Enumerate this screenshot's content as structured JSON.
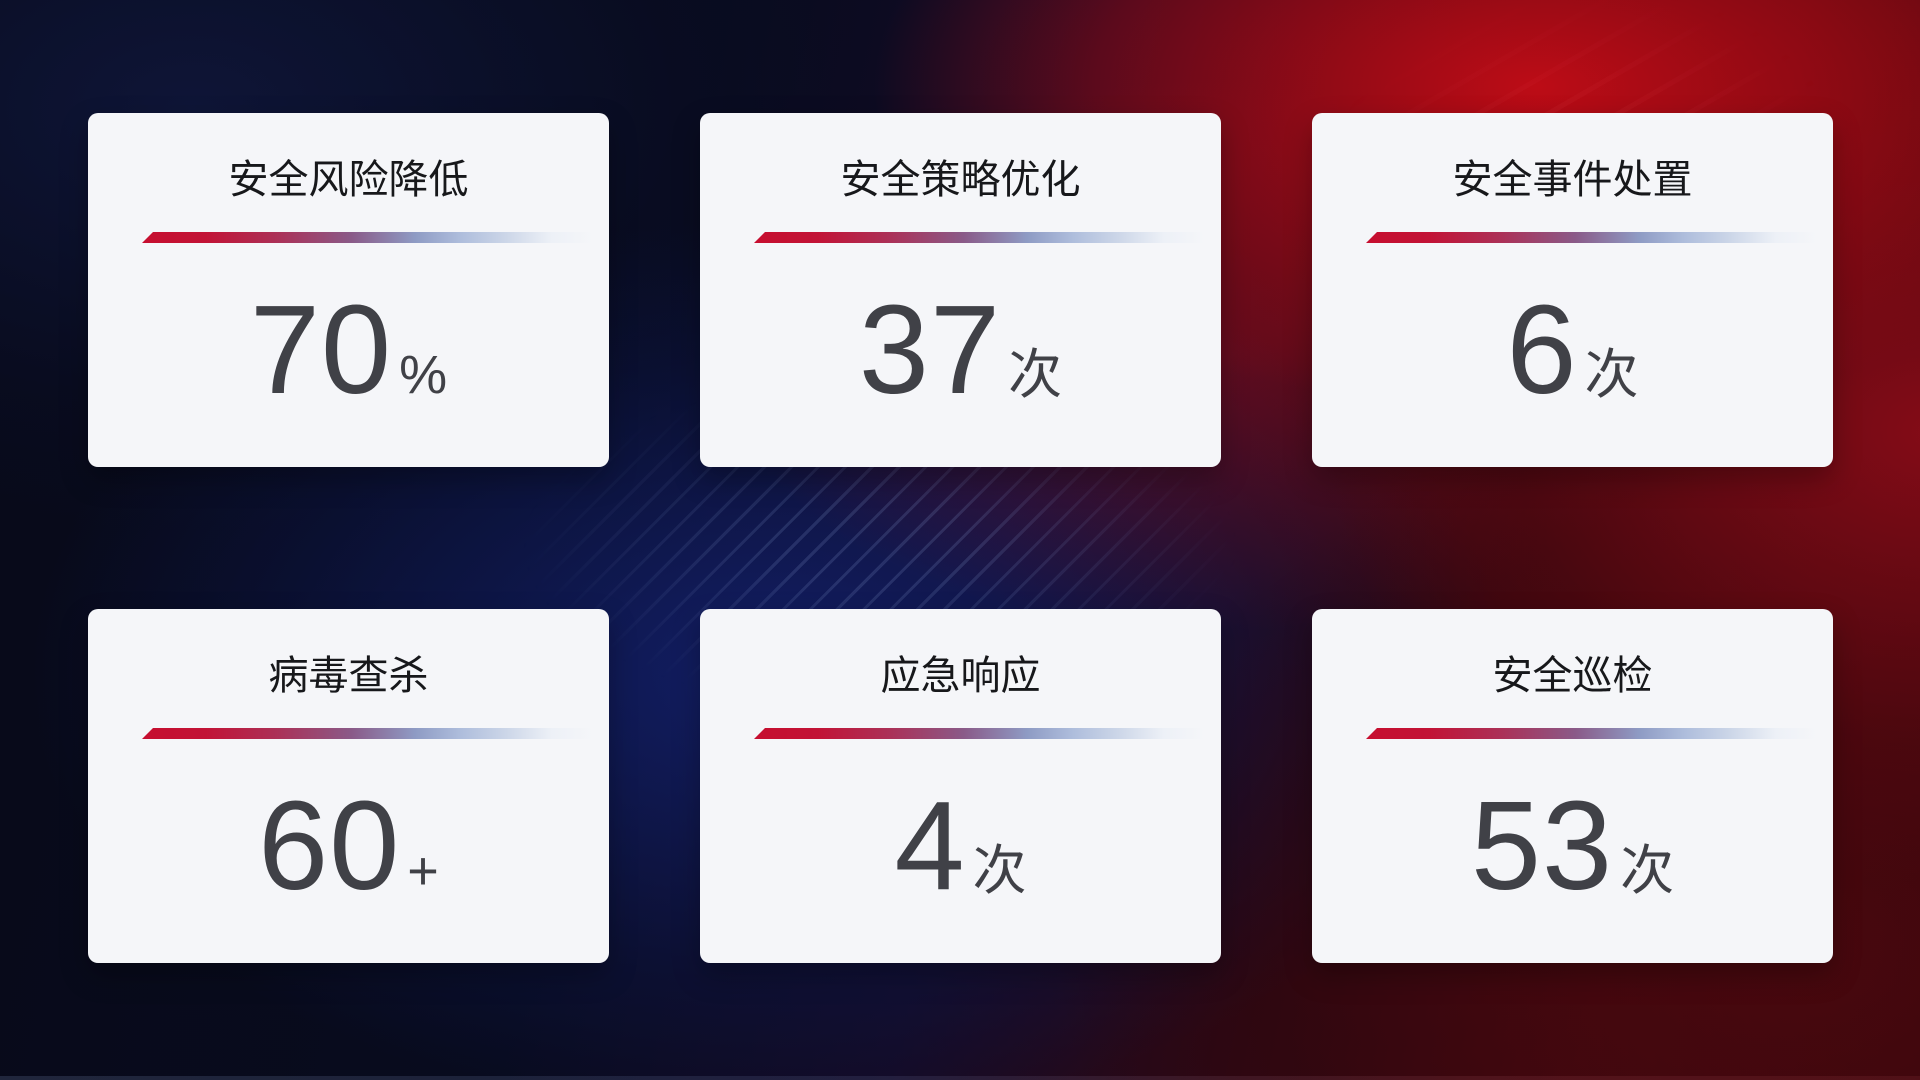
{
  "cards": [
    {
      "title": "安全风险降低",
      "value": "70",
      "unit": "%"
    },
    {
      "title": "安全策略优化",
      "value": "37",
      "unit": "次"
    },
    {
      "title": "安全事件处置",
      "value": "6",
      "unit": "次"
    },
    {
      "title": "病毒查杀",
      "value": "60",
      "unit": "+"
    },
    {
      "title": "应急响应",
      "value": "4",
      "unit": "次"
    },
    {
      "title": "安全巡检",
      "value": "53",
      "unit": "次"
    }
  ],
  "colors": {
    "card_background": "#f5f6f9",
    "title_text": "#17181b",
    "value_text": "#404147",
    "divider_gradient_start": "#c60e2f",
    "divider_gradient_mid": "#8a5a88",
    "divider_gradient_end": "#ccd6e8",
    "background_dark_navy": "#080b1e",
    "background_deep_blue": "#13206c",
    "background_bright_red": "#a50d15",
    "background_dark_red": "#3a060c"
  }
}
